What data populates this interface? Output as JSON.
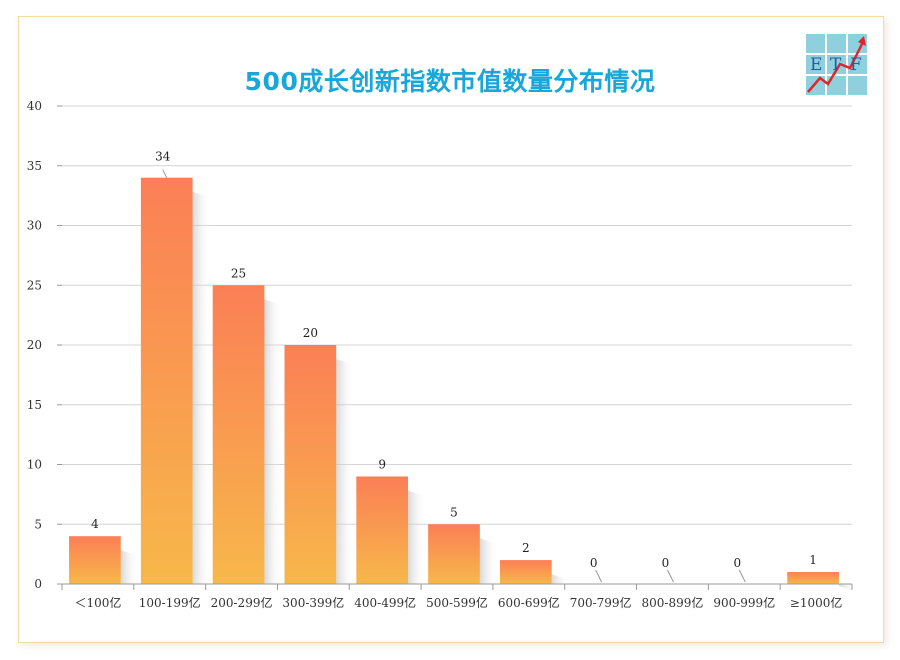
{
  "chart_data": {
    "type": "bar",
    "title": "500成长创新指数市值数量分布情况",
    "categories": [
      "＜100亿",
      "100-199亿",
      "200-299亿",
      "300-399亿",
      "400-499亿",
      "500-599亿",
      "600-699亿",
      "700-799亿",
      "800-899亿",
      "900-999亿",
      "≥1000亿"
    ],
    "values": [
      4,
      34,
      25,
      20,
      9,
      5,
      2,
      0,
      0,
      0,
      1
    ],
    "value_labels": [
      "4",
      "34",
      "25",
      "20",
      "9",
      "5",
      "2",
      "0",
      "0",
      "0",
      "1"
    ],
    "ylim": [
      0,
      40
    ],
    "yticks": [
      "0",
      "5",
      "10",
      "15",
      "20",
      "25",
      "30",
      "35",
      "40"
    ],
    "xlabel": "",
    "ylabel": "",
    "grid": true,
    "bar_color_top": "#fb7f56",
    "bar_color_bottom": "#f7b84a",
    "title_color": "#19a7d9"
  },
  "logo": {
    "letters": [
      "E",
      "T",
      "F"
    ],
    "tile_color": "#8fd0de",
    "arrow_color": "#e0262b",
    "letter_color": "#2b5a9a"
  }
}
